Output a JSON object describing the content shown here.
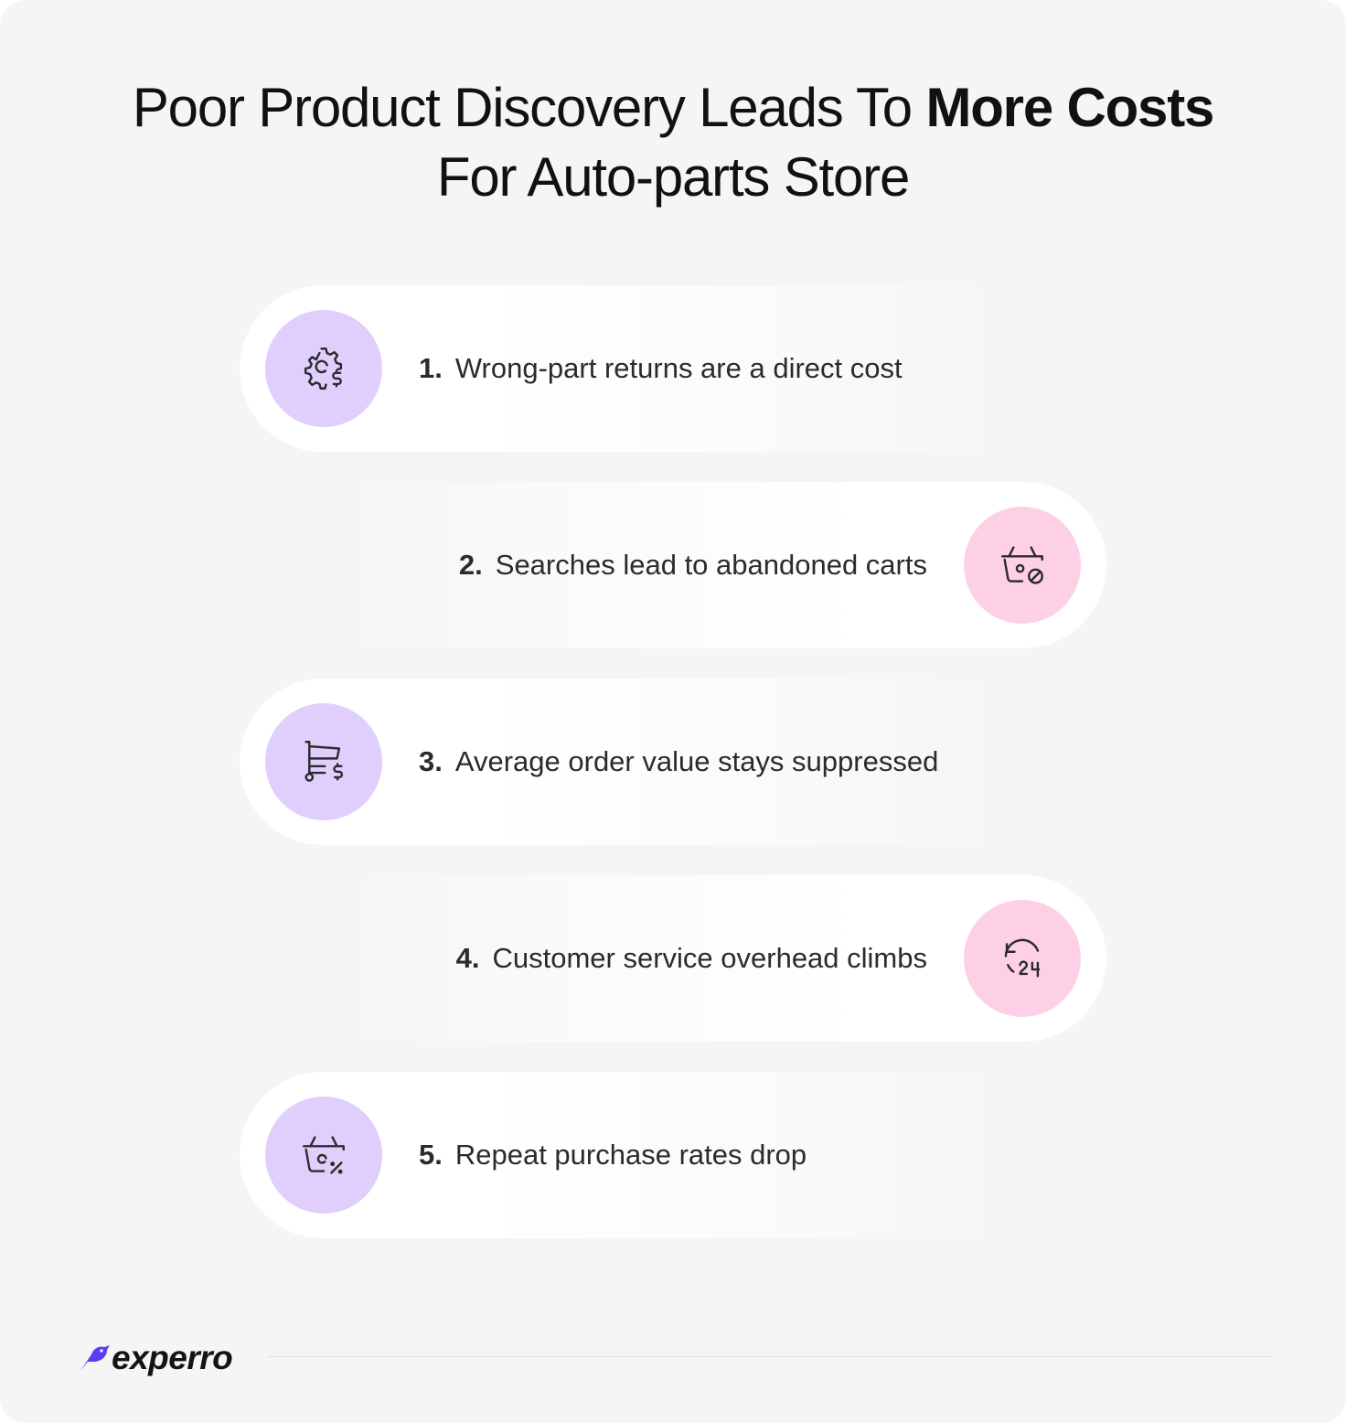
{
  "title": {
    "line1_regular": "Poor Product Discovery Leads To ",
    "line1_bold": "More Costs",
    "line2": "For Auto-parts Store"
  },
  "items": [
    {
      "number": "1.",
      "text": "Wrong-part returns are a direct cost",
      "icon": "gear-dollar-icon",
      "circle_color": "#e0cffd",
      "side": "left"
    },
    {
      "number": "2.",
      "text": "Searches lead to abandoned carts",
      "icon": "basket-cancel-icon",
      "circle_color": "#fdd0e6",
      "side": "right"
    },
    {
      "number": "3.",
      "text": "Average order value stays suppressed",
      "icon": "cart-dollar-icon",
      "circle_color": "#e0cffd",
      "side": "left"
    },
    {
      "number": "4.",
      "text": "Customer service overhead climbs",
      "icon": "support-24-icon",
      "circle_color": "#fdd0e6",
      "side": "right"
    },
    {
      "number": "5.",
      "text": "Repeat purchase rates drop",
      "icon": "basket-discount-icon",
      "circle_color": "#e0cffd",
      "side": "left"
    }
  ],
  "brand": {
    "name": "experro",
    "accent_color": "#5b3df5"
  }
}
